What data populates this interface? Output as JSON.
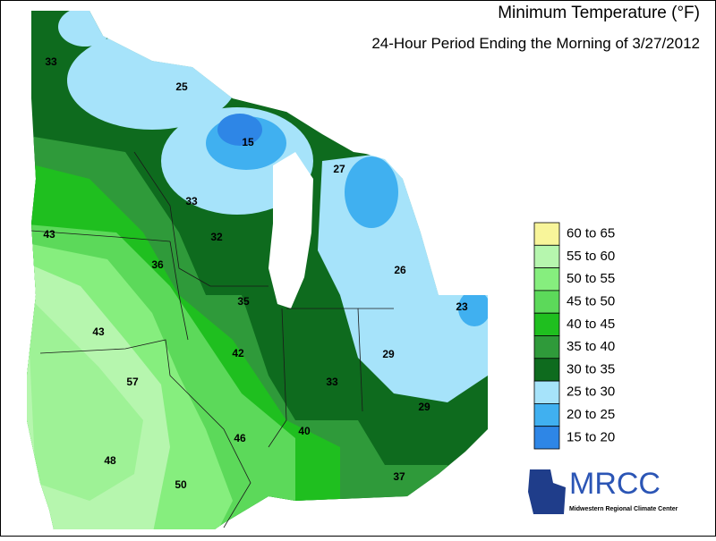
{
  "title": "Minimum Temperature (°F)",
  "subtitle": "24-Hour Period Ending the Morning of 3/27/2012",
  "legend": [
    {
      "label": "60 to 65",
      "color": "#f8f59a"
    },
    {
      "label": "55 to 60",
      "color": "#b6f6ae"
    },
    {
      "label": "50 to 55",
      "color": "#86ee7e"
    },
    {
      "label": "45 to 50",
      "color": "#5cd95a"
    },
    {
      "label": "40 to 45",
      "color": "#1fbf1f"
    },
    {
      "label": "35 to 40",
      "color": "#2f9a3a"
    },
    {
      "label": "30 to 35",
      "color": "#0e6b1e"
    },
    {
      "label": "25 to 30",
      "color": "#a6e3fa"
    },
    {
      "label": "20 to 25",
      "color": "#40b0f0"
    },
    {
      "label": "15 to 20",
      "color": "#2e86e6"
    }
  ],
  "map_labels": [
    33,
    25,
    15,
    27,
    33,
    32,
    43,
    36,
    26,
    35,
    23,
    43,
    42,
    29,
    57,
    33,
    29,
    40,
    46,
    48,
    50,
    37
  ],
  "logo": {
    "name": "MRCC",
    "caption": "Midwestern Regional Climate Center"
  }
}
